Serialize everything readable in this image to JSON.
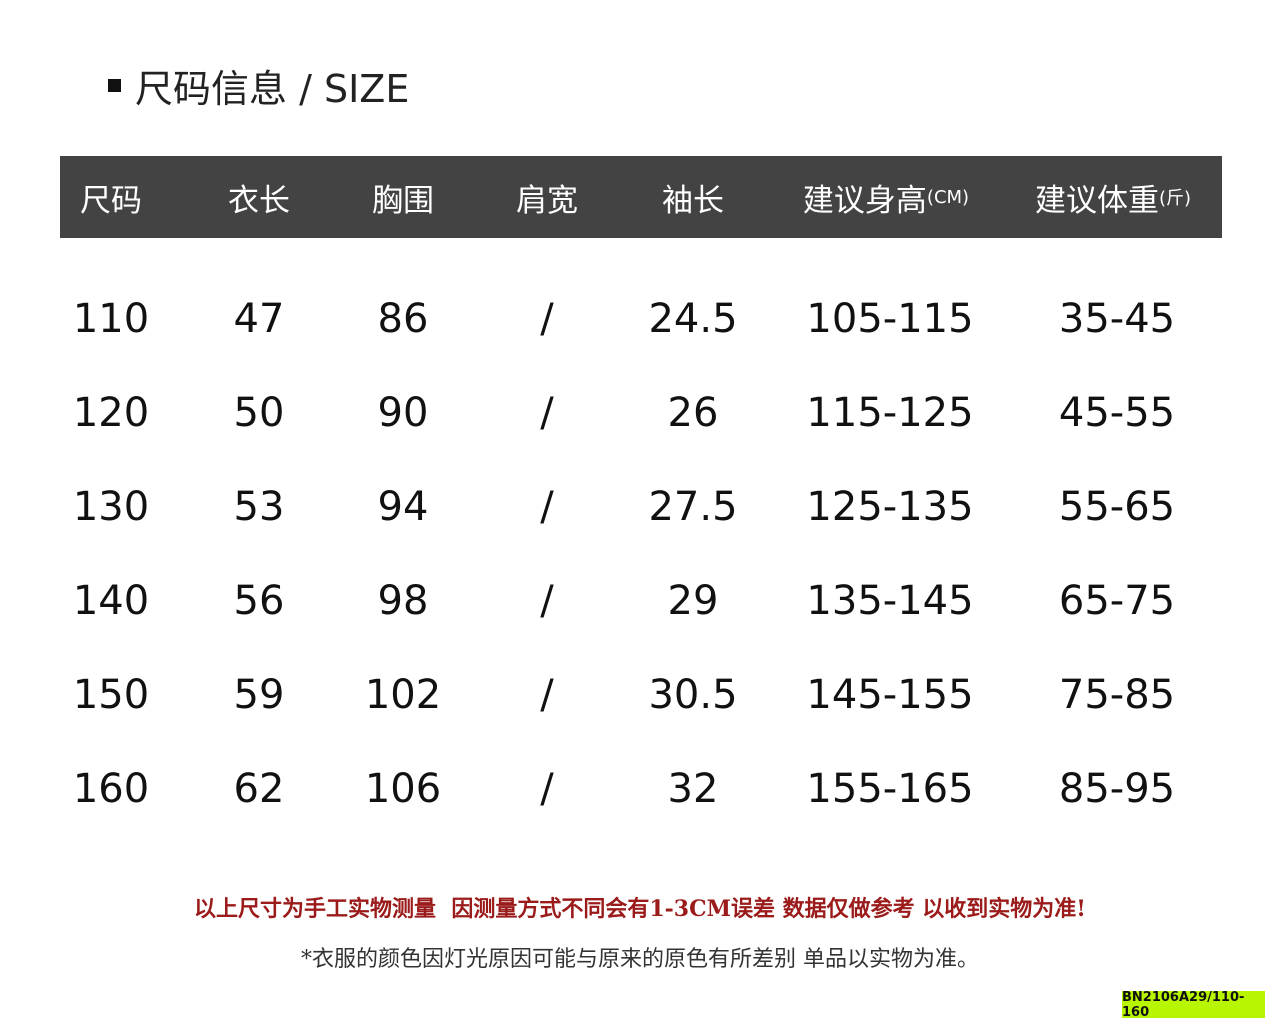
{
  "header": {
    "title": "尺码信息 / SIZE"
  },
  "table": {
    "columns": [
      {
        "label": "尺码"
      },
      {
        "label": "衣长"
      },
      {
        "label": "胸围"
      },
      {
        "label": "肩宽"
      },
      {
        "label": "袖长"
      },
      {
        "label": "建议身高",
        "unit": "(CM)"
      },
      {
        "label": "建议体重",
        "unit": "(斤)"
      }
    ],
    "rows": [
      [
        "110",
        "47",
        "86",
        "/",
        "24.5",
        "105-115",
        "35-45"
      ],
      [
        "120",
        "50",
        "90",
        "/",
        "26",
        "115-125",
        "45-55"
      ],
      [
        "130",
        "53",
        "94",
        "/",
        "27.5",
        "125-135",
        "55-65"
      ],
      [
        "140",
        "56",
        "98",
        "/",
        "29",
        "135-145",
        "65-75"
      ],
      [
        "150",
        "59",
        "102",
        "/",
        "30.5",
        "145-155",
        "75-85"
      ],
      [
        "160",
        "62",
        "106",
        "/",
        "32",
        "155-165",
        "85-95"
      ]
    ]
  },
  "notes": {
    "warning": "以上尺寸为手工实物测量  因测量方式不同会有1-3CM误差 数据仅做参考 以收到实物为准!",
    "disclaimer": "*衣服的颜色因灯光原因可能与原来的原色有所差别 单品以实物为准。"
  },
  "product_code": "BN2106A29/110-160"
}
